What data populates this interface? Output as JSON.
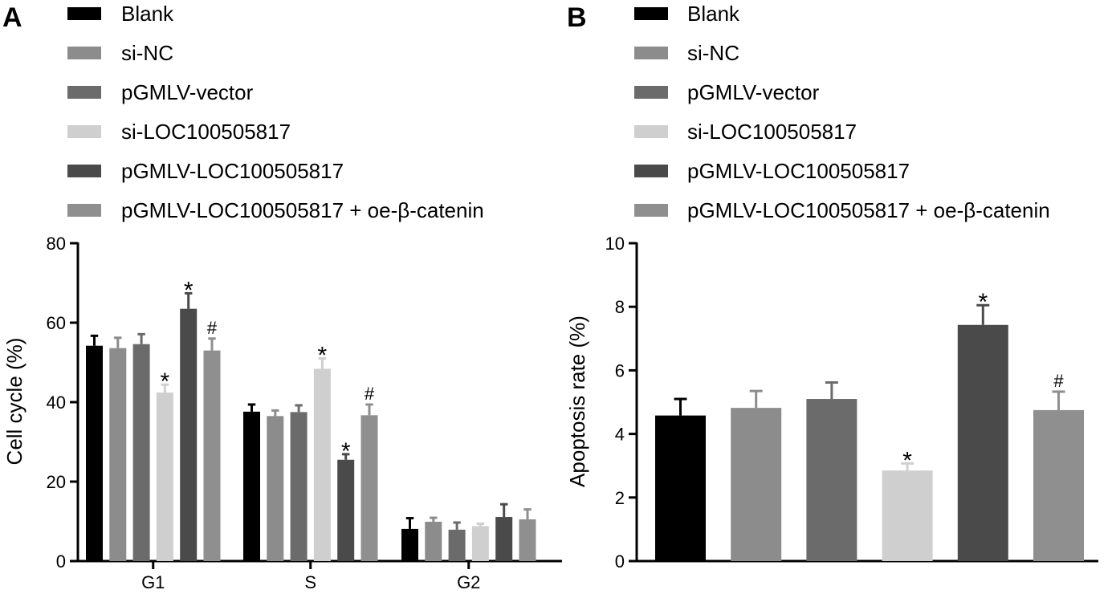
{
  "colors": {
    "Blank": "#000000",
    "si-NC": "#8c8c8c",
    "pGMLV-vector": "#6b6b6b",
    "si-LOC100505817": "#cfcfcf",
    "pGMLV-LOC100505817": "#4a4a4a",
    "pGMLV-LOC100505817 + oe-β-catenin": "#8f8f8f"
  },
  "chart_data": [
    {
      "panel": "A",
      "type": "bar",
      "ylabel": "Cell cycle (%)",
      "ylim": [
        0,
        80
      ],
      "yticks": [
        "0",
        "20",
        "40",
        "60",
        "80"
      ],
      "categories": [
        "G1",
        "S",
        "G2"
      ],
      "series": [
        {
          "name": "Blank",
          "values": [
            54.2,
            37.6,
            8.1
          ],
          "errors": [
            2.5,
            1.8,
            2.7
          ],
          "marks": [
            "",
            "",
            ""
          ]
        },
        {
          "name": "si-NC",
          "values": [
            53.6,
            36.5,
            9.9
          ],
          "errors": [
            2.6,
            1.4,
            1.0
          ],
          "marks": [
            "",
            "",
            ""
          ]
        },
        {
          "name": "pGMLV-vector",
          "values": [
            54.6,
            37.5,
            7.9
          ],
          "errors": [
            2.5,
            1.7,
            1.8
          ],
          "marks": [
            "",
            "",
            ""
          ]
        },
        {
          "name": "si-LOC100505817",
          "values": [
            42.4,
            48.4,
            8.8
          ],
          "errors": [
            2.0,
            2.6,
            0.6
          ],
          "marks": [
            "*",
            "*",
            ""
          ]
        },
        {
          "name": "pGMLV-LOC100505817",
          "values": [
            63.5,
            25.5,
            11.1
          ],
          "errors": [
            3.9,
            1.4,
            3.2
          ],
          "marks": [
            "*",
            "*",
            ""
          ]
        },
        {
          "name": "pGMLV-LOC100505817 + oe-β-catenin",
          "values": [
            53.0,
            36.7,
            10.5
          ],
          "errors": [
            3.0,
            2.7,
            2.5
          ],
          "marks": [
            "#",
            "#",
            ""
          ]
        }
      ]
    },
    {
      "panel": "B",
      "type": "bar",
      "ylabel": "Apoptosis rate (%)",
      "ylim": [
        0,
        10
      ],
      "yticks": [
        "0",
        "2",
        "4",
        "6",
        "8",
        "10"
      ],
      "categories": [
        ""
      ],
      "series": [
        {
          "name": "Blank",
          "values": [
            4.58
          ],
          "errors": [
            0.52
          ],
          "marks": [
            ""
          ]
        },
        {
          "name": "si-NC",
          "values": [
            4.82
          ],
          "errors": [
            0.53
          ],
          "marks": [
            ""
          ]
        },
        {
          "name": "pGMLV-vector",
          "values": [
            5.1
          ],
          "errors": [
            0.52
          ],
          "marks": [
            ""
          ]
        },
        {
          "name": "si-LOC100505817",
          "values": [
            2.85
          ],
          "errors": [
            0.22
          ],
          "marks": [
            "*"
          ]
        },
        {
          "name": "pGMLV-LOC100505817",
          "values": [
            7.43
          ],
          "errors": [
            0.62
          ],
          "marks": [
            "*"
          ]
        },
        {
          "name": "pGMLV-LOC100505817 + oe-β-catenin",
          "values": [
            4.75
          ],
          "errors": [
            0.58
          ],
          "marks": [
            "#"
          ]
        }
      ]
    }
  ]
}
